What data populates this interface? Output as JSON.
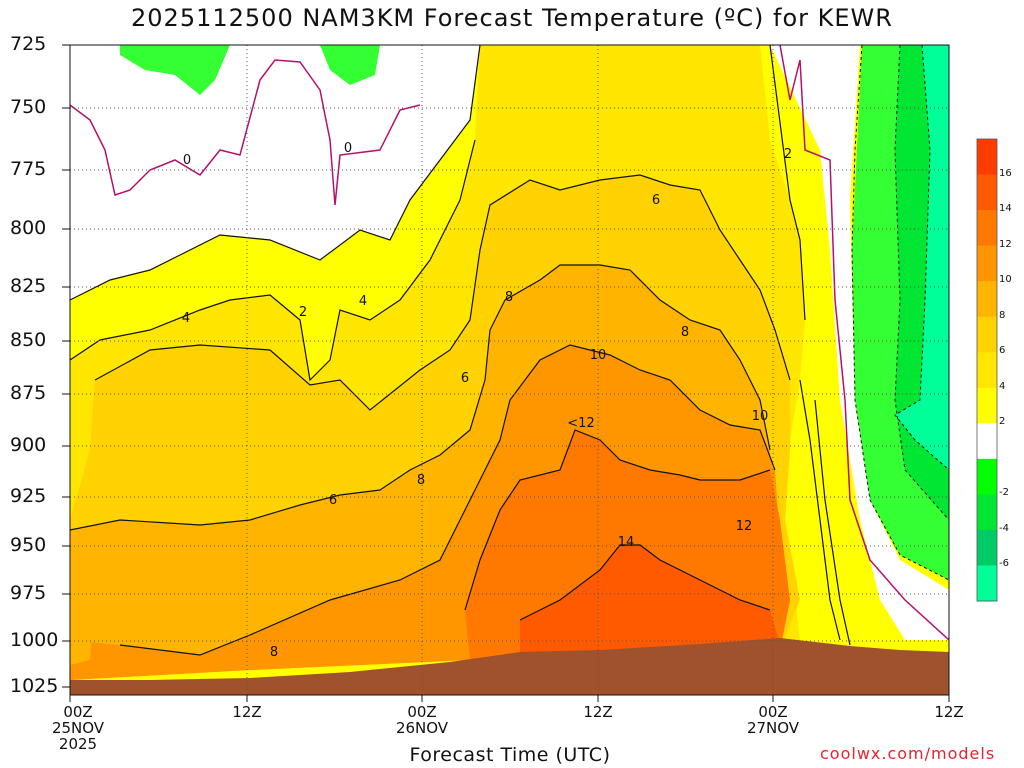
{
  "title": "2025112500 NAM3KM Forecast Temperature (ºC) for KEWR",
  "credit": "coolwx.com/models",
  "chart_data": {
    "type": "heatmap",
    "title": "2025112500 NAM3KM Forecast Temperature (ºC) for KEWR",
    "xlabel": "Forecast Time (UTC)",
    "ylabel": "",
    "y_ticks": [
      "725",
      "750",
      "775",
      "800",
      "825",
      "850",
      "875",
      "900",
      "925",
      "950",
      "975",
      "1000",
      "1025"
    ],
    "x_ticks": [
      {
        "line1": "00Z",
        "line2": "25NOV",
        "line3": "2025"
      },
      {
        "line1": "12Z",
        "line2": "",
        "line3": ""
      },
      {
        "line1": "00Z",
        "line2": "26NOV",
        "line3": ""
      },
      {
        "line1": "12Z",
        "line2": "",
        "line3": ""
      },
      {
        "line1": "00Z",
        "line2": "27NOV",
        "line3": ""
      },
      {
        "line1": "12Z",
        "line2": "",
        "line3": ""
      }
    ],
    "x_range_hours": [
      0,
      60
    ],
    "y_range_hPa": [
      725,
      1025
    ],
    "grid": true,
    "colorbar": {
      "labels": [
        "16",
        "14",
        "12",
        "10",
        "8",
        "6",
        "4",
        "2",
        "-2",
        "-4",
        "-6"
      ],
      "colors": [
        "#ff3c00",
        "#ff5a00",
        "#ff7800",
        "#ff9600",
        "#ffb400",
        "#ffd200",
        "#ffe600",
        "#ffff00",
        "#ffffff",
        "#00ff00",
        "#00e632",
        "#00cc66",
        "#00ff99"
      ]
    },
    "contour_labels": [
      {
        "text": "0"
      },
      {
        "text": "0"
      },
      {
        "text": "2"
      },
      {
        "text": "2"
      },
      {
        "text": "4"
      },
      {
        "text": "4"
      },
      {
        "text": "6"
      },
      {
        "text": "6"
      },
      {
        "text": "6"
      },
      {
        "text": "8"
      },
      {
        "text": "8"
      },
      {
        "text": "8"
      },
      {
        "text": "8"
      },
      {
        "text": "10"
      },
      {
        "text": "10"
      },
      {
        "text": "<12"
      },
      {
        "text": "12"
      },
      {
        "text": "14"
      }
    ]
  }
}
